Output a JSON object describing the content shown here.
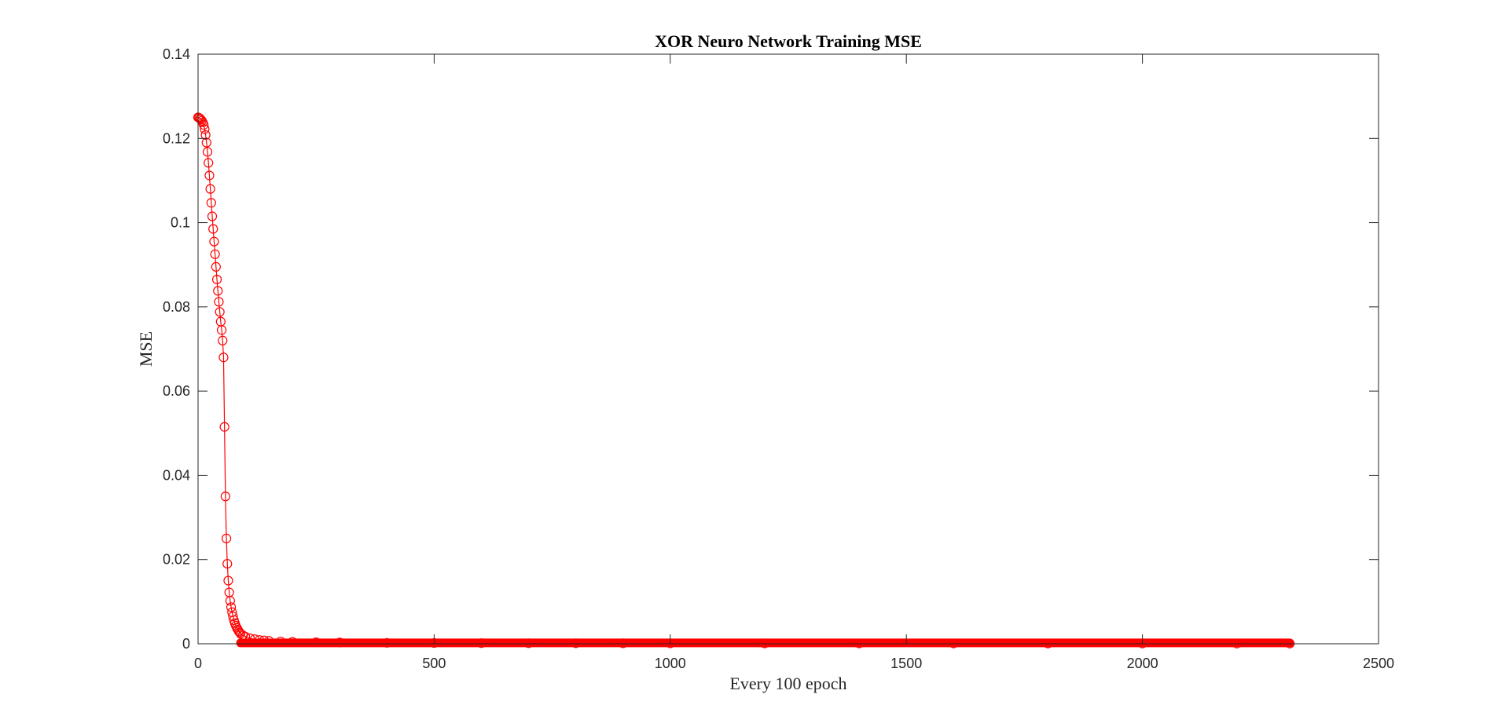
{
  "chart_data": {
    "type": "line",
    "title": "XOR Neuro Network Training MSE",
    "xlabel": "Every 100 epoch",
    "ylabel": "MSE",
    "xlim": [
      0,
      2500
    ],
    "ylim": [
      0,
      0.14
    ],
    "xticks": [
      0,
      500,
      1000,
      1500,
      2000,
      2500
    ],
    "xtick_labels": [
      "0",
      "500",
      "1000",
      "1500",
      "2000",
      "2500"
    ],
    "yticks": [
      0,
      0.02,
      0.04,
      0.06,
      0.08,
      0.1,
      0.12,
      0.14
    ],
    "ytick_labels": [
      "0",
      "0.02",
      "0.04",
      "0.06",
      "0.08",
      "0.1",
      "0.12",
      "0.14"
    ],
    "grid": false,
    "marker": "circle",
    "line_color": "#ff0000",
    "series": [
      {
        "x": [
          0,
          2,
          4,
          6,
          8,
          10,
          12,
          14,
          16,
          18,
          20,
          22,
          24,
          26,
          28,
          30,
          32,
          34,
          36,
          38,
          40,
          42,
          44,
          46,
          48,
          50,
          52,
          54,
          56,
          58,
          60,
          62,
          64,
          66,
          68,
          70,
          72,
          74,
          76,
          78,
          80,
          82,
          84,
          86,
          88,
          90,
          95,
          100,
          110,
          120,
          130,
          140,
          150,
          175,
          200,
          250,
          300,
          400,
          500,
          600,
          700,
          800,
          900,
          1000,
          1200,
          1400,
          1600,
          1800,
          2000,
          2200,
          2312
        ],
        "y": [
          0.125,
          0.1249,
          0.1247,
          0.1245,
          0.1242,
          0.1238,
          0.1232,
          0.1222,
          0.1208,
          0.119,
          0.1168,
          0.1142,
          0.1112,
          0.108,
          0.1047,
          0.1015,
          0.0985,
          0.0955,
          0.0925,
          0.0895,
          0.0865,
          0.0838,
          0.0812,
          0.0788,
          0.0765,
          0.0745,
          0.072,
          0.068,
          0.0515,
          0.035,
          0.025,
          0.019,
          0.015,
          0.0122,
          0.0102,
          0.0087,
          0.0075,
          0.0065,
          0.0056,
          0.0049,
          0.0043,
          0.0038,
          0.0034,
          0.003,
          0.0027,
          0.0024,
          0.002,
          0.0017,
          0.0013,
          0.0011,
          0.0009,
          0.0008,
          0.0007,
          0.00055,
          0.00045,
          0.00035,
          0.0003,
          0.00022,
          0.00018,
          0.00015,
          0.00013,
          0.00012,
          0.00011,
          0.0001,
          9e-05,
          8e-05,
          7e-05,
          6e-05,
          6e-05,
          5e-05,
          5e-05
        ]
      }
    ]
  }
}
